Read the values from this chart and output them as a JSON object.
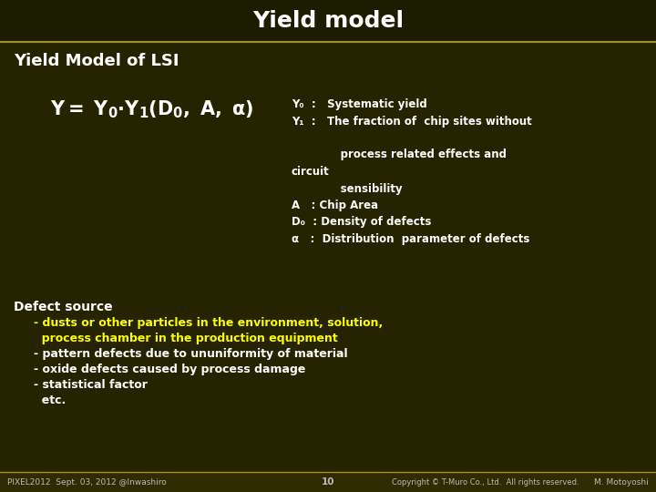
{
  "title": "Yield model",
  "title_color": "#FFFFFF",
  "title_bg_color": "#1c1c00",
  "header_line_color": "#a89000",
  "slide_bg": "#252300",
  "heading": "Yield Model of LSI",
  "heading_color": "#FFFFFF",
  "heading_fontsize": 13,
  "right_lines": [
    {
      "text": "Y₀  :   Systematic yield",
      "color": "#FFFFFF",
      "bold": true
    },
    {
      "text": "Y₁  :   The fraction of  chip sites without",
      "color": "#FFFFFF",
      "bold": true
    },
    {
      "text": "",
      "color": "#FFFFFF",
      "bold": false
    },
    {
      "text": "             process related effects and",
      "color": "#FFFFFF",
      "bold": true
    },
    {
      "text": "circuit",
      "color": "#FFFFFF",
      "bold": true
    },
    {
      "text": "             sensibility",
      "color": "#FFFFFF",
      "bold": true
    },
    {
      "text": "A   : Chip Area",
      "color": "#FFFFFF",
      "bold": true
    },
    {
      "text": "D₀  : Density of defects",
      "color": "#FFFFFF",
      "bold": true
    },
    {
      "text": "α   :  Distribution  parameter of defects",
      "color": "#FFFFFF",
      "bold": true
    }
  ],
  "defect_heading": "Defect source",
  "defect_heading_color": "#FFFFFF",
  "defect_lines": [
    {
      "text": "- dusts or other particles in the environment, solution,",
      "color": "#FFFF00",
      "bold": true
    },
    {
      "text": "  process chamber in the production equipment",
      "color": "#FFFF00",
      "bold": true
    },
    {
      "text": "- pattern defects due to ununiformity of material",
      "color": "#FFFFFF",
      "bold": true
    },
    {
      "text": "- oxide defects caused by process damage",
      "color": "#FFFFFF",
      "bold": true
    },
    {
      "text": "- statistical factor",
      "color": "#FFFFFF",
      "bold": true
    },
    {
      "text": "  etc.",
      "color": "#FFFFFF",
      "bold": true
    }
  ],
  "footer_bg": "#2e2c00",
  "footer_line_color": "#a89000",
  "footer_left": "PIXEL2012  Sept. 03, 2012 @Inwashiro",
  "footer_center": "10",
  "footer_right": "Copyright © T-Muro Co., Ltd.  All rights reserved.",
  "footer_far_right": "M. Motoyoshi",
  "footer_color": "#BBBBBB",
  "footer_fontsize": 6.5
}
